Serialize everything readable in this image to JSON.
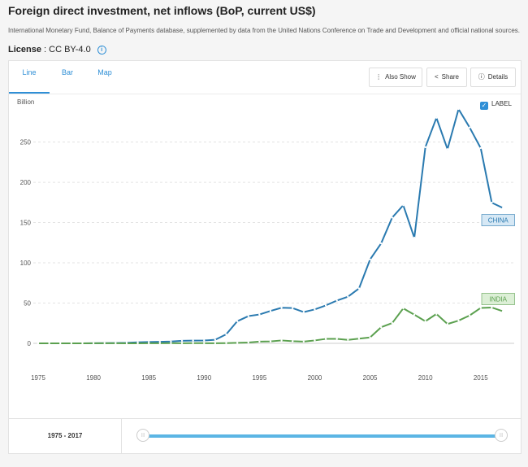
{
  "page": {
    "title": "Foreign direct investment, net inflows (BoP, current US$)",
    "source": "International Monetary Fund, Balance of Payments database, supplemented by data from the United Nations Conference on Trade and Development and official national sources.",
    "license_label": "License",
    "license_value": ": CC BY-4.0"
  },
  "tabs": [
    {
      "label": "Line",
      "active": true
    },
    {
      "label": "Bar",
      "active": false
    },
    {
      "label": "Map",
      "active": false
    }
  ],
  "toolbar": {
    "also_show": "Also Show",
    "share": "Share",
    "details": "Details"
  },
  "chart_controls": {
    "unit_label": "Billion",
    "label_toggle": "LABEL",
    "label_checked": true
  },
  "range": {
    "label": "1975 - 2017",
    "start": 1975,
    "end": 2017
  },
  "colors": {
    "china": "#2a7ab0",
    "india": "#5ba04f",
    "accent": "#2f8fd6",
    "slider": "#5bb5e4"
  },
  "chart_data": {
    "type": "line",
    "title": "",
    "xlabel": "",
    "ylabel": "Billion",
    "xlim": [
      1975,
      2017
    ],
    "ylim": [
      0,
      290
    ],
    "yticks": [
      0,
      50,
      100,
      150,
      200,
      250
    ],
    "xticks": [
      1975,
      1980,
      1985,
      1990,
      1995,
      2000,
      2005,
      2010,
      2015
    ],
    "grid": true,
    "x": [
      1975,
      1976,
      1977,
      1978,
      1979,
      1980,
      1981,
      1982,
      1983,
      1984,
      1985,
      1986,
      1987,
      1988,
      1989,
      1990,
      1991,
      1992,
      1993,
      1994,
      1995,
      1996,
      1997,
      1998,
      1999,
      2000,
      2001,
      2002,
      2003,
      2004,
      2005,
      2006,
      2007,
      2008,
      2009,
      2010,
      2011,
      2012,
      2013,
      2014,
      2015,
      2016,
      2017
    ],
    "series": [
      {
        "name": "CHINA",
        "color": "#2a7ab0",
        "values": [
          0,
          0,
          0,
          0,
          0,
          0.1,
          0.3,
          0.4,
          0.6,
          1.3,
          1.7,
          1.9,
          2.3,
          3.2,
          3.4,
          3.5,
          4.4,
          11.2,
          27.5,
          33.8,
          35.8,
          40.2,
          44.2,
          43.8,
          38.8,
          42.1,
          47.1,
          53.1,
          57.9,
          68.1,
          104.1,
          124.1,
          156.2,
          171.5,
          131.1,
          243.7,
          280.1,
          241.2,
          290.9,
          268.1,
          242.5,
          174.7,
          168.2
        ]
      },
      {
        "name": "INDIA",
        "color": "#5ba04f",
        "values": [
          0,
          0,
          0,
          0,
          0,
          0.1,
          0.1,
          0.1,
          0.0,
          0.0,
          0.1,
          0.1,
          0.2,
          0.1,
          0.3,
          0.2,
          0.1,
          0.3,
          0.6,
          1.0,
          2.1,
          2.4,
          3.6,
          2.6,
          2.2,
          3.6,
          5.5,
          5.6,
          4.3,
          5.8,
          7.3,
          20.0,
          25.2,
          43.4,
          35.6,
          27.4,
          36.5,
          24.0,
          28.2,
          34.6,
          44.0,
          44.5,
          39.9
        ]
      }
    ]
  }
}
